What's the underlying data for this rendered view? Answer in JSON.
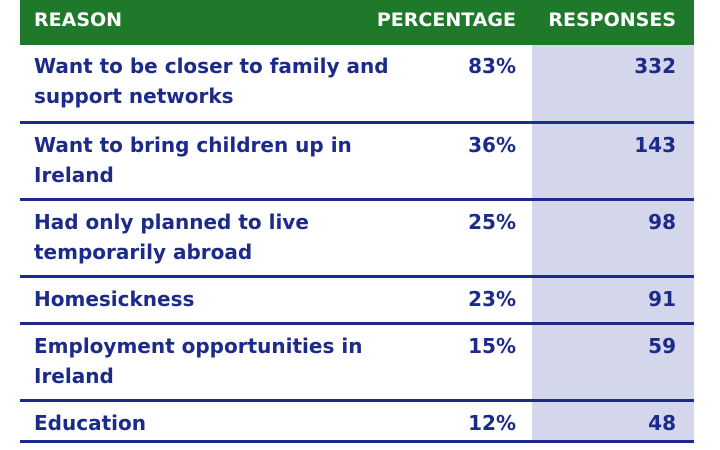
{
  "table": {
    "headers": {
      "reason": "REASON",
      "percentage": "PERCENTAGE",
      "responses": "RESPONSES"
    },
    "rows": [
      {
        "reason": "Want to be closer to family and support networks",
        "percentage": "83%",
        "responses": "332"
      },
      {
        "reason": "Want to bring children up in Ireland",
        "percentage": "36%",
        "responses": "143"
      },
      {
        "reason": "Had only planned to live temporarily abroad",
        "percentage": "25%",
        "responses": "98"
      },
      {
        "reason": "Homesickness",
        "percentage": "23%",
        "responses": "91"
      },
      {
        "reason": "Employment opportunities in Ireland",
        "percentage": "15%",
        "responses": "59"
      },
      {
        "reason": "Education",
        "percentage": "12%",
        "responses": "48"
      }
    ]
  },
  "colors": {
    "header_background": "#1e7a2a",
    "text": "#1c2a8a",
    "responses_shading": "#d4d6eb"
  }
}
